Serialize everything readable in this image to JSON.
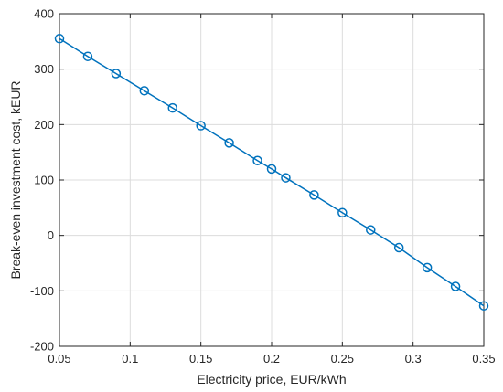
{
  "chart_data": {
    "type": "line",
    "title": "",
    "xlabel": "Electricity price, EUR/kWh",
    "ylabel": "Break-even investment cost, kEUR",
    "xlim": [
      0.05,
      0.35
    ],
    "ylim": [
      -200,
      400
    ],
    "xticks": [
      0.05,
      0.1,
      0.15,
      0.2,
      0.25,
      0.3,
      0.35
    ],
    "xtick_labels": [
      "0.05",
      "0.1",
      "0.15",
      "0.2",
      "0.25",
      "0.3",
      "0.35"
    ],
    "yticks": [
      -200,
      -100,
      0,
      100,
      200,
      300,
      400
    ],
    "ytick_labels": [
      "-200",
      "-100",
      "0",
      "100",
      "200",
      "300",
      "400"
    ],
    "grid": true,
    "legend": "none",
    "series": [
      {
        "color": "#0072BD",
        "marker": "circle",
        "x": [
          0.05,
          0.07,
          0.09,
          0.11,
          0.13,
          0.15,
          0.17,
          0.19,
          0.2,
          0.21,
          0.23,
          0.25,
          0.27,
          0.29,
          0.31,
          0.33,
          0.35
        ],
        "y": [
          355,
          323,
          292,
          261,
          230,
          198,
          167,
          135,
          120,
          104,
          73,
          41,
          10,
          -22,
          -58,
          -92,
          -127
        ]
      }
    ]
  }
}
